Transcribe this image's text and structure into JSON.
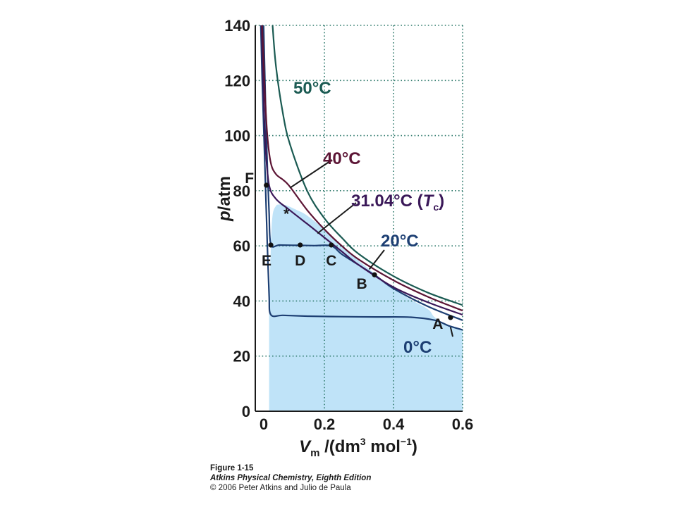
{
  "chart_data": {
    "type": "line",
    "xlabel": {
      "symbol": "V",
      "sub": "m",
      "units": " /(dm",
      "sup1": "3",
      "mid": " mol",
      "sup2": "−1",
      "end": ")"
    },
    "ylabel": {
      "symbol": "p",
      "units": "/atm"
    },
    "xlim": [
      0,
      0.6
    ],
    "ylim": [
      0,
      140
    ],
    "x_ticks": [
      0,
      0.2,
      0.4,
      0.6
    ],
    "x_tick_labels": [
      "0",
      "0.2",
      "0.4",
      "0.6"
    ],
    "y_ticks": [
      0,
      20,
      40,
      60,
      80,
      100,
      120,
      140
    ],
    "y_tick_labels": [
      "0",
      "20",
      "40",
      "60",
      "80",
      "100",
      "120",
      "140"
    ],
    "grid": true,
    "series": [
      {
        "name": "0°C",
        "color": "#1d3f73",
        "x": [
          0.016,
          0.02,
          0.025,
          0.03,
          0.035,
          0.04,
          0.045,
          0.08,
          0.15,
          0.25,
          0.35,
          0.45,
          0.52,
          0.56,
          0.6
        ],
        "y": [
          140,
          120,
          100,
          80,
          60,
          42,
          35,
          34.8,
          34.5,
          34.3,
          34.2,
          34.1,
          33,
          31,
          29.5
        ]
      },
      {
        "name": "20°C",
        "color": "#1d3f73",
        "x": [
          0.024,
          0.028,
          0.032,
          0.036,
          0.04,
          0.045,
          0.07,
          0.12,
          0.17,
          0.22,
          0.25,
          0.3,
          0.35,
          0.4,
          0.5,
          0.6
        ],
        "y": [
          140,
          120,
          100,
          85,
          72,
          60.5,
          60.3,
          60.2,
          60.1,
          60,
          57,
          53,
          49,
          44.5,
          38,
          33
        ]
      },
      {
        "name": "31.04°C (T_c)",
        "color": "#3a1858",
        "x": [
          0.018,
          0.025,
          0.03,
          0.04,
          0.06,
          0.094,
          0.15,
          0.2,
          0.25,
          0.3,
          0.4,
          0.5,
          0.6
        ],
        "y": [
          140,
          110,
          95,
          82,
          77,
          73.5,
          68,
          63,
          58,
          53,
          45,
          39.5,
          35
        ]
      },
      {
        "name": "40°C",
        "color": "#5c1535",
        "x": [
          0.02,
          0.028,
          0.035,
          0.045,
          0.06,
          0.08,
          0.1,
          0.15,
          0.2,
          0.25,
          0.3,
          0.4,
          0.5,
          0.6
        ],
        "y": [
          140,
          115,
          100,
          90,
          86,
          84,
          81.5,
          73,
          66,
          60,
          55,
          47.5,
          41.5,
          36.5
        ]
      },
      {
        "name": "50°C",
        "color": "#1a5a52",
        "x": [
          0.05,
          0.06,
          0.08,
          0.1,
          0.15,
          0.2,
          0.25,
          0.3,
          0.4,
          0.5,
          0.6
        ],
        "y": [
          140,
          125,
          108,
          97,
          80,
          70,
          63,
          57,
          49,
          43,
          38.5
        ]
      }
    ],
    "two_phase_region": {
      "color": "#bfe3f8",
      "x": [
        0.04,
        0.045,
        0.05,
        0.06,
        0.07,
        0.08,
        0.094,
        0.12,
        0.15,
        0.2,
        0.25,
        0.3,
        0.35,
        0.4,
        0.45,
        0.5,
        0.52,
        0.56,
        0.6
      ],
      "y": [
        34.8,
        60,
        71,
        74.5,
        75,
        75,
        74.5,
        73,
        71,
        66,
        60,
        54.5,
        49.5,
        44.5,
        40.5,
        37,
        34,
        31,
        29.5
      ]
    },
    "points": [
      {
        "label": "A",
        "x": 0.565,
        "y": 34
      },
      {
        "label": "B",
        "x": 0.345,
        "y": 49.5
      },
      {
        "label": "C",
        "x": 0.22,
        "y": 60.3
      },
      {
        "label": "D",
        "x": 0.13,
        "y": 60.3
      },
      {
        "label": "E",
        "x": 0.045,
        "y": 60.3
      },
      {
        "label": "F",
        "x": 0.032,
        "y": 82
      }
    ],
    "critical_point": {
      "label": "*",
      "x": 0.094,
      "y": 73.5
    },
    "curve_labels": [
      {
        "text": "50°C",
        "color": "#1a5a52"
      },
      {
        "text": "40°C",
        "color": "#5c1535"
      },
      {
        "text": "31.04°C  (",
        "italic": "T",
        "sub": "c",
        "close": ")",
        "color": "#3a1858"
      },
      {
        "text": "20°C",
        "color": "#1d3f73"
      },
      {
        "text": "0°C",
        "color": "#1d3f73"
      }
    ]
  },
  "caption": {
    "figure": "Figure 1-15",
    "book": "Atkins Physical Chemistry, Eighth Edition",
    "copyright": "© 2006 Peter Atkins and Julio de Paula"
  }
}
